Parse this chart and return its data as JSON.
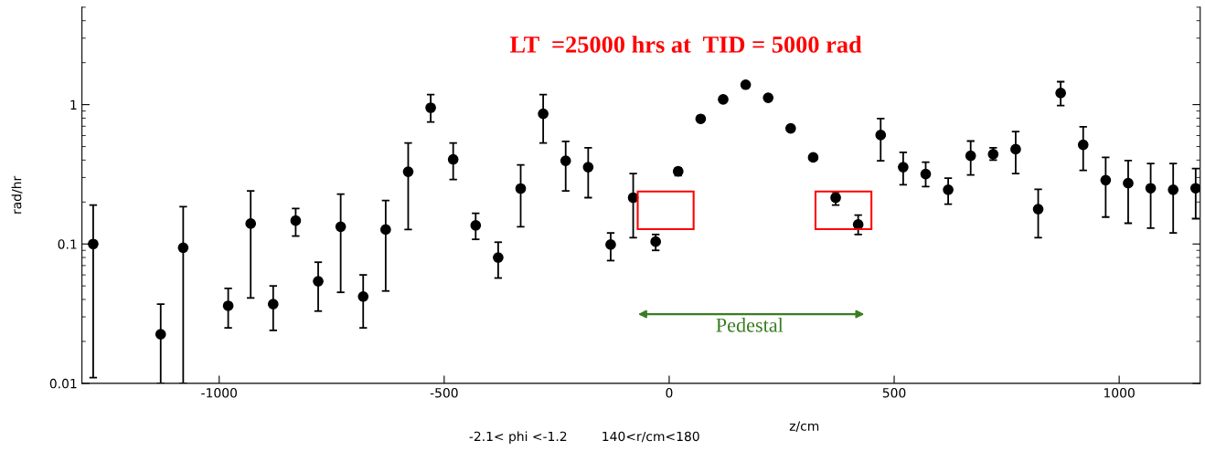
{
  "chart_data": {
    "type": "scatter",
    "title": "LT  =25000 hrs at  TID = 5000 rad",
    "xlabel": "z/cm",
    "ylabel": "rad/hr",
    "annotations": [
      "-2.1< phi <-1.2",
      "140<r/cm<180",
      "Pedestal"
    ],
    "x": [
      -1280,
      -1130,
      -1080,
      -980,
      -930,
      -880,
      -830,
      -780,
      -730,
      -680,
      -630,
      -580,
      -530,
      -480,
      -430,
      -380,
      -330,
      -280,
      -230,
      -180,
      -130,
      -80,
      -30,
      20,
      70,
      120,
      170,
      220,
      270,
      320,
      370,
      420,
      470,
      520,
      570,
      620,
      670,
      720,
      770,
      820,
      870,
      920,
      970,
      1020,
      1070,
      1120,
      1170
    ],
    "series": [
      {
        "color": "#000000",
        "values": [
          0.1,
          0.0225,
          0.094,
          0.036,
          0.14,
          0.037,
          0.147,
          0.054,
          0.133,
          0.042,
          0.127,
          0.33,
          0.95,
          0.405,
          0.136,
          0.08,
          0.25,
          0.86,
          0.395,
          0.356,
          0.099,
          0.215,
          0.104,
          0.332,
          0.79,
          1.09,
          1.39,
          1.12,
          0.676,
          0.418,
          0.215,
          0.138,
          0.605,
          0.356,
          0.318,
          0.245,
          0.43,
          0.441,
          0.479,
          0.178,
          1.21,
          0.515,
          0.287,
          0.273,
          0.251,
          0.245,
          0.251
        ],
        "errors": [
          [
            0.011,
            0.19
          ],
          [
            0.01,
            0.037
          ],
          [
            0.01,
            0.185
          ],
          [
            0.025,
            0.048
          ],
          [
            0.041,
            0.24
          ],
          [
            0.024,
            0.05
          ],
          [
            0.114,
            0.18
          ],
          [
            0.033,
            0.074
          ],
          [
            0.045,
            0.228
          ],
          [
            0.025,
            0.06
          ],
          [
            0.046,
            0.205
          ],
          [
            0.127,
            0.53
          ],
          [
            0.75,
            1.18
          ],
          [
            0.29,
            0.53
          ],
          [
            0.108,
            0.166
          ],
          [
            0.057,
            0.103
          ],
          [
            0.133,
            0.369
          ],
          [
            0.53,
            1.18
          ],
          [
            0.24,
            0.545
          ],
          [
            0.215,
            0.49
          ],
          [
            0.076,
            0.12
          ],
          [
            0.111,
            0.32
          ],
          [
            0.09,
            0.117
          ],
          [
            0.31,
            0.35
          ],
          null,
          null,
          null,
          null,
          null,
          null,
          [
            0.19,
            0.235
          ],
          [
            0.117,
            0.161
          ],
          [
            0.395,
            0.795
          ],
          [
            0.266,
            0.455
          ],
          [
            0.258,
            0.387
          ],
          [
            0.193,
            0.297
          ],
          [
            0.313,
            0.548
          ],
          [
            0.4,
            0.49
          ],
          [
            0.32,
            0.64
          ],
          [
            0.111,
            0.247
          ],
          [
            0.985,
            1.46
          ],
          [
            0.337,
            0.694
          ],
          [
            0.156,
            0.418
          ],
          [
            0.141,
            0.397
          ],
          [
            0.13,
            0.378
          ],
          [
            0.12,
            0.378
          ],
          [
            0.152,
            0.348
          ]
        ]
      }
    ],
    "marker": "circle",
    "log": "y",
    "xlim": [
      -1305,
      1180
    ],
    "ylim": [
      0.01,
      5
    ],
    "xticks": [
      -1000,
      -500,
      0,
      500,
      1000
    ],
    "yticks": [
      0.01,
      0.1,
      1
    ],
    "grid": false,
    "legend": false
  }
}
